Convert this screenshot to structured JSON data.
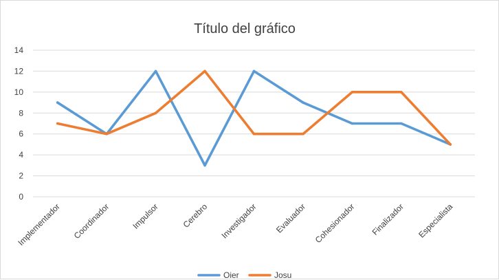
{
  "chart_data": {
    "type": "line",
    "title": "Título del gráfico",
    "xlabel": "",
    "ylabel": "",
    "categories": [
      "Implementador",
      "Coordinador",
      "Impulsor",
      "Cerebro",
      "Investigador",
      "Evaluador",
      "Cohesionador",
      "Finalizador",
      "Especialista"
    ],
    "series": [
      {
        "name": "Oier",
        "color": "#5b9bd5",
        "values": [
          9,
          6,
          12,
          3,
          12,
          9,
          7,
          7,
          5
        ]
      },
      {
        "name": "Josu",
        "color": "#ed7d31",
        "values": [
          7,
          6,
          8,
          12,
          6,
          6,
          10,
          10,
          5
        ]
      }
    ],
    "ylim": [
      0,
      14
    ],
    "yticks": [
      0,
      2,
      4,
      6,
      8,
      10,
      12,
      14
    ],
    "grid": true,
    "legend_position": "bottom"
  }
}
